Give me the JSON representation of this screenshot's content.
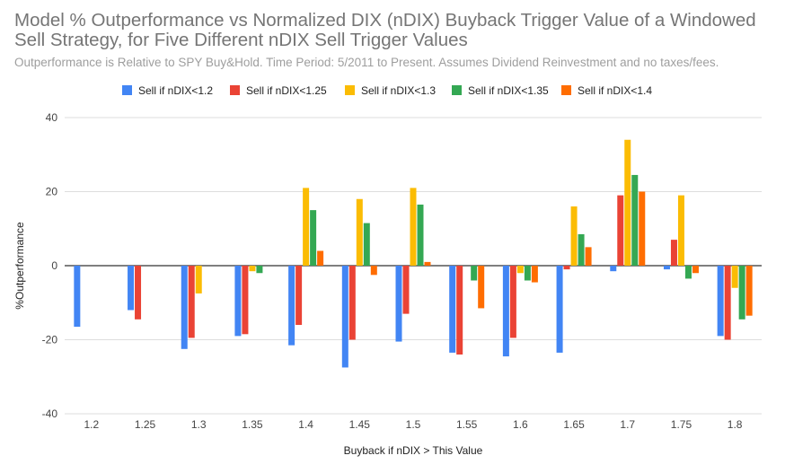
{
  "chart_data": {
    "type": "bar",
    "title": "Model % Outperformance vs Normalized DIX (nDIX) Buyback Trigger Value of a Windowed Sell Strategy, for Five Different nDIX Sell Trigger Values",
    "subtitle": "Outperformance is Relative to SPY Buy&Hold. Time Period: 5/2011 to Present. Assumes Dividend Reinvestment and no taxes/fees.",
    "xlabel": "Buyback if nDIX > This Value",
    "ylabel": "%Outperformance",
    "ylim": [
      -40,
      40
    ],
    "yticks": [
      "40",
      "20",
      "0",
      "-20",
      "-40"
    ],
    "ytick_values": [
      40,
      20,
      0,
      -20,
      -40
    ],
    "grid": true,
    "legend_position": "top",
    "categories": [
      "1.2",
      "1.25",
      "1.3",
      "1.35",
      "1.4",
      "1.45",
      "1.5",
      "1.55",
      "1.6",
      "1.65",
      "1.7",
      "1.75",
      "1.8"
    ],
    "series": [
      {
        "name": "Sell if nDIX<1.2",
        "color": "#4285F4",
        "values": [
          -16.5,
          -12,
          -22.5,
          -19,
          -21.5,
          -27.5,
          -20.5,
          -23.5,
          -24.5,
          -23.5,
          -1.5,
          -1,
          -19
        ]
      },
      {
        "name": "Sell if nDIX<1.25",
        "color": "#EA4335",
        "values": [
          0,
          -14.5,
          -19.5,
          -18.5,
          -16,
          -20,
          -13,
          -24,
          -19.5,
          -1,
          19,
          7,
          -20
        ]
      },
      {
        "name": "Sell if nDIX<1.3",
        "color": "#FBBC04",
        "values": [
          0,
          0,
          -7.5,
          -1.5,
          21,
          18,
          21,
          0,
          -2,
          16,
          34,
          19,
          -6
        ]
      },
      {
        "name": "Sell if nDIX<1.35",
        "color": "#34A853",
        "values": [
          0,
          0,
          0,
          -2,
          15,
          11.5,
          16.5,
          -4,
          -4,
          8.5,
          24.5,
          -3.5,
          -14.5
        ]
      },
      {
        "name": "Sell if nDIX<1.4",
        "color": "#FF6D01",
        "values": [
          0,
          0,
          0,
          0,
          4,
          -2.5,
          1,
          -11.5,
          -4.5,
          5,
          20,
          -2,
          -13.5
        ]
      }
    ]
  }
}
